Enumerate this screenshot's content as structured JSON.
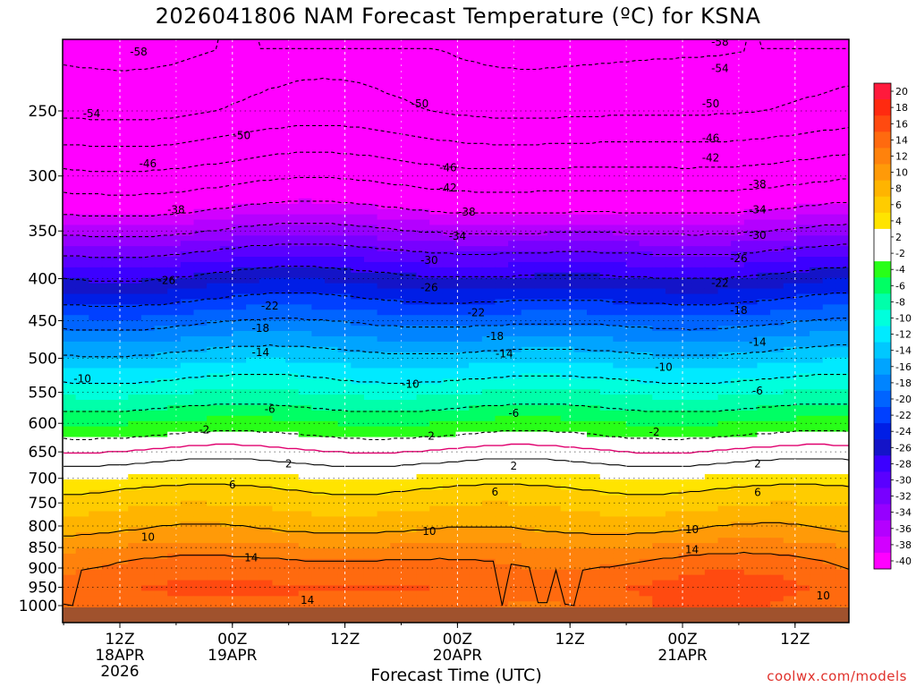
{
  "chart_data": {
    "type": "heatmap",
    "title": "2026041806 NAM Forecast Temperature (ºC) for KSNA",
    "xlabel": "Forecast Time (UTC)",
    "ylabel": "",
    "credit": "coolwx.com/models",
    "y_ticks": [
      "250",
      "300",
      "350",
      "400",
      "450",
      "500",
      "550",
      "600",
      "650",
      "700",
      "750",
      "800",
      "850",
      "900",
      "950",
      "1000"
    ],
    "y_values": [
      250,
      300,
      350,
      400,
      450,
      500,
      550,
      600,
      650,
      700,
      750,
      800,
      850,
      900,
      950,
      1000
    ],
    "x_ticks": [
      {
        "hour": 12,
        "line1": "12Z",
        "line2": "18APR",
        "line3": "2026"
      },
      {
        "hour": 24,
        "line1": "00Z",
        "line2": "19APR",
        "line3": ""
      },
      {
        "hour": 36,
        "line1": "12Z",
        "line2": "",
        "line3": ""
      },
      {
        "hour": 48,
        "line1": "00Z",
        "line2": "20APR",
        "line3": ""
      },
      {
        "hour": 60,
        "line1": "12Z",
        "line2": "",
        "line3": ""
      },
      {
        "hour": 72,
        "line1": "00Z",
        "line2": "21APR",
        "line3": ""
      },
      {
        "hour": 84,
        "line1": "12Z",
        "line2": "",
        "line3": ""
      }
    ],
    "x_range_hours": [
      6,
      90
    ],
    "colorbar_levels": [
      "20",
      "18",
      "16",
      "14",
      "12",
      "10",
      "8",
      "6",
      "4",
      "2",
      "-2",
      "-4",
      "-6",
      "-8",
      "-10",
      "-12",
      "-14",
      "-16",
      "-18",
      "-20",
      "-22",
      "-24",
      "-26",
      "-28",
      "-30",
      "-32",
      "-34",
      "-36",
      "-38",
      "-40"
    ],
    "colorbar_colors": [
      "#ff1a3c",
      "#ff2a10",
      "#ff4a10",
      "#ff6a0f",
      "#ff820c",
      "#ff9a08",
      "#ffb400",
      "#ffcc00",
      "#ffe400",
      "#ffffff",
      "#ffffff",
      "#28ff18",
      "#00ff64",
      "#00ffaa",
      "#00ffdc",
      "#00eaff",
      "#00c8ff",
      "#00a4ff",
      "#0084ff",
      "#0064ff",
      "#0040ff",
      "#001ee6",
      "#1414c8",
      "#3c00ff",
      "#5a00ff",
      "#7800ff",
      "#9600ff",
      "#b400ff",
      "#d200ff",
      "#ff00ff"
    ],
    "temperature_profile": [
      {
        "p": 210,
        "t": -58
      },
      {
        "p": 250,
        "t": -54
      },
      {
        "p": 270,
        "t": -50
      },
      {
        "p": 290,
        "t": -46
      },
      {
        "p": 310,
        "t": -42
      },
      {
        "p": 330,
        "t": -38
      },
      {
        "p": 350,
        "t": -34
      },
      {
        "p": 370,
        "t": -30
      },
      {
        "p": 395,
        "t": -26
      },
      {
        "p": 425,
        "t": -22
      },
      {
        "p": 455,
        "t": -18
      },
      {
        "p": 490,
        "t": -14
      },
      {
        "p": 530,
        "t": -10
      },
      {
        "p": 575,
        "t": -6
      },
      {
        "p": 620,
        "t": -2
      },
      {
        "p": 670,
        "t": 2
      },
      {
        "p": 720,
        "t": 6
      },
      {
        "p": 810,
        "t": 10
      },
      {
        "p": 880,
        "t": 14
      },
      {
        "p": 950,
        "t": 16
      },
      {
        "p": 1000,
        "t": 15
      }
    ],
    "contour_labels": [
      {
        "text": "-58",
        "hour": 14,
        "p": 212
      },
      {
        "text": "-58",
        "hour": 76,
        "p": 206
      },
      {
        "text": "-54",
        "hour": 9,
        "p": 252
      },
      {
        "text": "-54",
        "hour": 76,
        "p": 222
      },
      {
        "text": "-50",
        "hour": 25,
        "p": 268
      },
      {
        "text": "-50",
        "hour": 44,
        "p": 245
      },
      {
        "text": "-50",
        "hour": 75,
        "p": 245
      },
      {
        "text": "-46",
        "hour": 15,
        "p": 290
      },
      {
        "text": "-46",
        "hour": 47,
        "p": 293
      },
      {
        "text": "-46",
        "hour": 75,
        "p": 270
      },
      {
        "text": "-42",
        "hour": 47,
        "p": 310
      },
      {
        "text": "-42",
        "hour": 75,
        "p": 285
      },
      {
        "text": "-38",
        "hour": 18,
        "p": 330
      },
      {
        "text": "-38",
        "hour": 49,
        "p": 332
      },
      {
        "text": "-38",
        "hour": 80,
        "p": 307
      },
      {
        "text": "-34",
        "hour": 48,
        "p": 355
      },
      {
        "text": "-34",
        "hour": 80,
        "p": 330
      },
      {
        "text": "-30",
        "hour": 45,
        "p": 380
      },
      {
        "text": "-30",
        "hour": 80,
        "p": 354
      },
      {
        "text": "-26",
        "hour": 17,
        "p": 402
      },
      {
        "text": "-26",
        "hour": 45,
        "p": 410
      },
      {
        "text": "-26",
        "hour": 78,
        "p": 378
      },
      {
        "text": "-22",
        "hour": 28,
        "p": 432
      },
      {
        "text": "-22",
        "hour": 50,
        "p": 440
      },
      {
        "text": "-22",
        "hour": 76,
        "p": 405
      },
      {
        "text": "-18",
        "hour": 27,
        "p": 460
      },
      {
        "text": "-18",
        "hour": 52,
        "p": 470
      },
      {
        "text": "-18",
        "hour": 78,
        "p": 437
      },
      {
        "text": "-14",
        "hour": 27,
        "p": 492
      },
      {
        "text": "-14",
        "hour": 53,
        "p": 494
      },
      {
        "text": "-14",
        "hour": 80,
        "p": 478
      },
      {
        "text": "-10",
        "hour": 8,
        "p": 530
      },
      {
        "text": "-10",
        "hour": 43,
        "p": 538
      },
      {
        "text": "-10",
        "hour": 70,
        "p": 513
      },
      {
        "text": "-6",
        "hour": 28,
        "p": 577
      },
      {
        "text": "-6",
        "hour": 54,
        "p": 583
      },
      {
        "text": "-6",
        "hour": 80,
        "p": 548
      },
      {
        "text": "-2",
        "hour": 21,
        "p": 611
      },
      {
        "text": "-2",
        "hour": 45,
        "p": 622
      },
      {
        "text": "-2",
        "hour": 69,
        "p": 615
      },
      {
        "text": "2",
        "hour": 30,
        "p": 672
      },
      {
        "text": "2",
        "hour": 54,
        "p": 676
      },
      {
        "text": "2",
        "hour": 80,
        "p": 672
      },
      {
        "text": "6",
        "hour": 24,
        "p": 713
      },
      {
        "text": "6",
        "hour": 52,
        "p": 727
      },
      {
        "text": "6",
        "hour": 80,
        "p": 728
      },
      {
        "text": "10",
        "hour": 15,
        "p": 825
      },
      {
        "text": "10",
        "hour": 45,
        "p": 812
      },
      {
        "text": "10",
        "hour": 73,
        "p": 808
      },
      {
        "text": "14",
        "hour": 26,
        "p": 875
      },
      {
        "text": "14",
        "hour": 32,
        "p": 985
      },
      {
        "text": "14",
        "hour": 73,
        "p": 855
      },
      {
        "text": "10",
        "hour": 87,
        "p": 973
      }
    ]
  }
}
